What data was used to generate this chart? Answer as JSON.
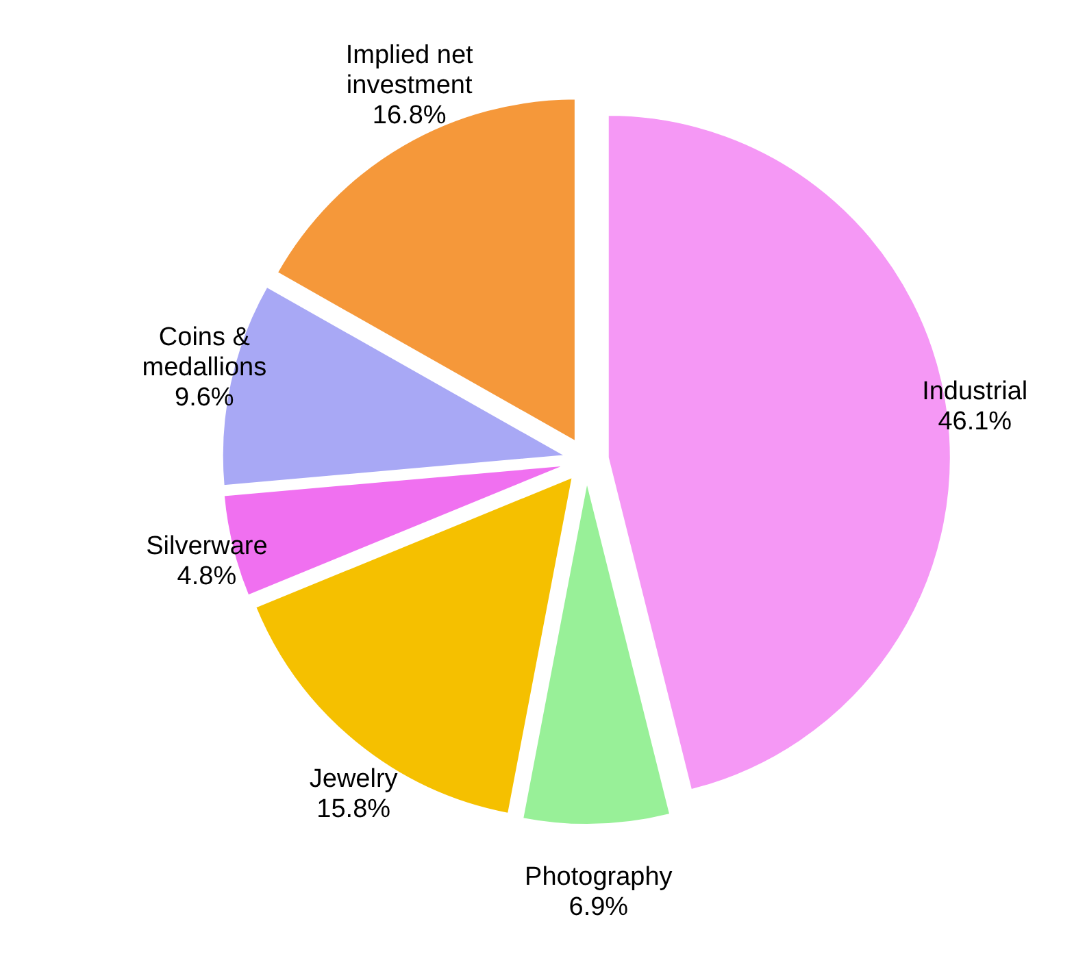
{
  "chart_data": {
    "type": "pie",
    "categories": [
      "Industrial",
      "Photography",
      "Jewelry",
      "Silverware",
      "Coins & medallions",
      "Implied net investment"
    ],
    "values": [
      46.1,
      6.9,
      15.8,
      4.8,
      9.6,
      16.8
    ],
    "colors": [
      "#f598f5",
      "#98f098",
      "#f5c000",
      "#f070f0",
      "#a8a8f5",
      "#f5983a"
    ],
    "value_labels": [
      "46.1%",
      "6.9%",
      "15.8%",
      "4.8%",
      "9.6%",
      "16.8%"
    ]
  }
}
